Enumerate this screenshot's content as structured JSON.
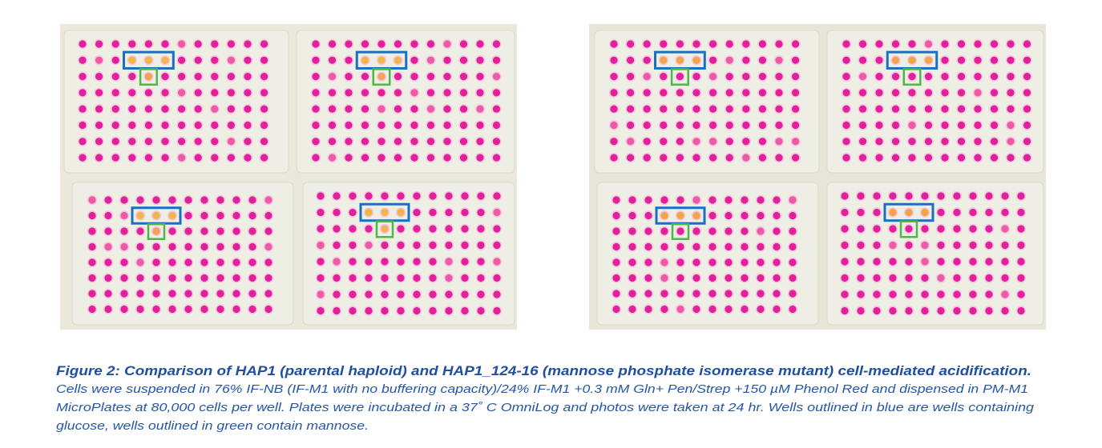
{
  "figure": {
    "caption_title": "Figure 2: Comparison of  HAP1 (parental haploid) and HAP1_124-16 (mannose phosphate isomerase mutant) cell-mediated acidification.",
    "caption_body": [
      "Cells were suspended in 76% IF-NB (IF-M1 with no buffering capacity)/24% IF-M1 +0.3 mM Gln+ Pen/Strep +150 µM Phenol Red and dispensed in PM-M1",
      "MicroPlates at 80,000 cells per well. Plates were incubated in a 37˚ C OmniLog and photos were taken at 24 hr. Wells outlined in blue are wells containing",
      "glucose, wells outlined in green contain mannose."
    ]
  }
}
